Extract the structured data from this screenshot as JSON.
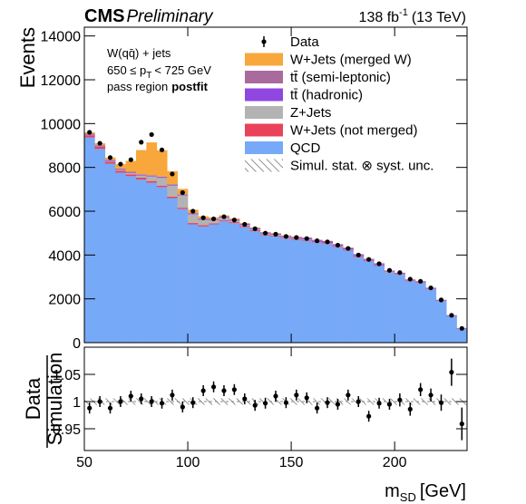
{
  "chart_data": {
    "type": "stacked_histogram",
    "header": {
      "cms": "CMS",
      "prelim": "Preliminary",
      "lumi": "138 fb",
      "lumi_sup": "-1",
      "energy": "(13 TeV)"
    },
    "annotation": {
      "line1": "W(qq̄) + jets",
      "line2a": "650 ≤ p",
      "line2sub": "T",
      "line2b": "< 725 GeV",
      "line3a": "pass region",
      "line3b": "postfit"
    },
    "ylabel": "Events",
    "xlabel": {
      "main": "m",
      "sub": "SD",
      "unit": "[GeV]"
    },
    "bins": [
      50,
      55,
      60,
      65,
      70,
      75,
      80,
      85,
      90,
      95,
      100,
      105,
      110,
      115,
      120,
      125,
      130,
      135,
      140,
      145,
      150,
      155,
      160,
      165,
      170,
      175,
      180,
      185,
      190,
      195,
      200,
      205,
      210,
      215,
      220,
      225,
      230,
      235
    ],
    "xlim": [
      50,
      235
    ],
    "xticks": [
      50,
      100,
      150,
      200
    ],
    "ylim": [
      0,
      14400
    ],
    "yticks": [
      0,
      2000,
      4000,
      6000,
      8000,
      10000,
      12000,
      14000
    ],
    "data": {
      "name": "Data",
      "color": "#000000",
      "values": [
        9600,
        9100,
        8450,
        8150,
        8350,
        9150,
        9500,
        8800,
        7700,
        6850,
        6000,
        5700,
        5650,
        5750,
        5600,
        5400,
        5200,
        5000,
        4950,
        4850,
        4800,
        4750,
        4650,
        4600,
        4450,
        4300,
        4000,
        3800,
        3600,
        3300,
        3200,
        2900,
        2800,
        2500,
        1950,
        1250,
        650
      ]
    },
    "series": [
      {
        "name": "W+Jets (merged W)",
        "color": "#f8a73c",
        "values": [
          50,
          80,
          100,
          200,
          500,
          1100,
          1500,
          1200,
          600,
          250,
          150,
          100,
          60,
          50,
          40,
          30,
          30,
          20,
          20,
          20,
          15,
          15,
          10,
          10,
          10,
          10,
          10,
          5,
          5,
          5,
          5,
          5,
          5,
          5,
          5,
          5,
          5
        ]
      },
      {
        "name": "tt̄ (semi-leptonic)",
        "color": "#a96b9e",
        "values": [
          30,
          30,
          30,
          30,
          30,
          30,
          30,
          30,
          30,
          30,
          30,
          30,
          30,
          30,
          30,
          30,
          30,
          30,
          30,
          30,
          30,
          30,
          30,
          30,
          30,
          30,
          30,
          30,
          30,
          30,
          30,
          30,
          30,
          30,
          20,
          10,
          10
        ]
      },
      {
        "name": "tt̄ (hadronic)",
        "color": "#9046e0",
        "values": [
          30,
          30,
          30,
          30,
          30,
          30,
          30,
          30,
          30,
          30,
          30,
          30,
          30,
          30,
          30,
          30,
          30,
          30,
          30,
          30,
          30,
          60,
          60,
          60,
          60,
          60,
          60,
          60,
          60,
          30,
          30,
          30,
          30,
          30,
          30,
          30,
          30
        ]
      },
      {
        "name": "Z+Jets",
        "color": "#b3b3b3",
        "values": [
          20,
          20,
          30,
          40,
          60,
          100,
          200,
          350,
          500,
          550,
          400,
          250,
          150,
          100,
          70,
          50,
          40,
          30,
          30,
          30,
          25,
          25,
          20,
          20,
          20,
          15,
          15,
          15,
          10,
          10,
          10,
          10,
          10,
          5,
          5,
          5,
          5
        ]
      },
      {
        "name": "W+Jets (not merged)",
        "color": "#e8435a",
        "values": [
          100,
          100,
          90,
          90,
          80,
          80,
          80,
          70,
          70,
          60,
          60,
          60,
          50,
          50,
          50,
          50,
          40,
          40,
          40,
          40,
          40,
          30,
          30,
          30,
          30,
          30,
          30,
          20,
          20,
          20,
          20,
          20,
          20,
          10,
          10,
          10,
          10
        ]
      },
      {
        "name": "QCD",
        "color": "#76a9f8",
        "values": [
          9370,
          8840,
          8170,
          7760,
          7600,
          7450,
          7300,
          7100,
          6600,
          6100,
          5400,
          5300,
          5400,
          5550,
          5450,
          5270,
          5090,
          4900,
          4850,
          4750,
          4700,
          4650,
          4550,
          4500,
          4350,
          4200,
          3900,
          3700,
          3500,
          3200,
          3100,
          2800,
          2720,
          2430,
          1890,
          1200,
          610
        ]
      }
    ],
    "unc_label": "Simul. stat. ⊗ syst. unc.",
    "ratio": {
      "ylabel_top": "Data",
      "ylabel_bottom": "Simulation",
      "ylim": [
        0.91,
        1.1
      ],
      "yticks": [
        0.95,
        1,
        1.05
      ],
      "unc": 0.006,
      "values": [
        0.988,
        1.0,
        0.988,
        1.0,
        1.01,
        1.005,
        1.0,
        0.997,
        1.012,
        0.99,
        0.998,
        1.02,
        1.027,
        1.02,
        1.022,
        1.005,
        0.993,
        0.997,
        1.01,
        0.998,
        1.012,
        1.007,
        0.988,
        0.998,
        0.995,
        1.012,
        1.0,
        0.973,
        0.997,
        0.995,
        1.003,
        0.986,
        1.022,
        1.012,
        0.998,
        1.054,
        0.959
      ],
      "errors": [
        0.01,
        0.01,
        0.01,
        0.01,
        0.01,
        0.01,
        0.01,
        0.01,
        0.01,
        0.01,
        0.01,
        0.01,
        0.01,
        0.01,
        0.01,
        0.01,
        0.01,
        0.01,
        0.01,
        0.01,
        0.01,
        0.01,
        0.01,
        0.01,
        0.01,
        0.01,
        0.01,
        0.01,
        0.01,
        0.01,
        0.012,
        0.012,
        0.012,
        0.012,
        0.015,
        0.025,
        0.03
      ]
    }
  }
}
